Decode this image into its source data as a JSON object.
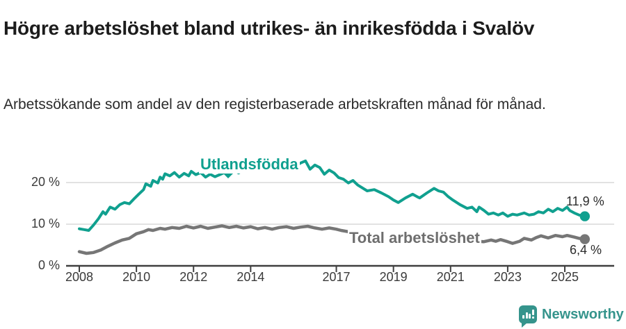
{
  "header": {
    "title": "Högre arbetslöshet bland utrikes- än inrikesfödda i Svalöv",
    "subtitle": "Arbetssökande som andel av den registerbaserade arbetskraften månad för månad."
  },
  "footer": {
    "brand": "Newsworthy",
    "logo_icon": "newsworthy-speech-bubble-barchart-icon"
  },
  "colors": {
    "foreign_series": "#10a08f",
    "total_series": "#767676",
    "grid": "#d8d8d8",
    "axis": "#3f3f3f",
    "text": "#2b2b2b",
    "brand": "#35948c"
  },
  "chart_data": {
    "type": "line",
    "title": "Högre arbetslöshet bland utrikes- än inrikesfödda i Svalöv",
    "subtitle": "Arbetssökande som andel av den registerbaserade arbetskraften månad för månad.",
    "unit": "%",
    "grid": true,
    "legend_position": "inline-labels",
    "x_axis": {
      "ticks": [
        2008,
        2010,
        2012,
        2014,
        2017,
        2019,
        2021,
        2023,
        2025
      ],
      "range": [
        2007.5,
        2026.7
      ]
    },
    "y_axis": {
      "ticks": [
        {
          "value": 0,
          "label": "0 %"
        },
        {
          "value": 10,
          "label": "10 %"
        },
        {
          "value": 20,
          "label": "20 %"
        }
      ],
      "range": [
        0,
        26
      ]
    },
    "series": [
      {
        "name": "Utlandsfödda",
        "color": "#10a08f",
        "line_width": 4,
        "end_label": "11,9 %",
        "end_value": 11.9,
        "points": [
          [
            2008.0,
            8.9
          ],
          [
            2008.17,
            8.7
          ],
          [
            2008.33,
            8.5
          ],
          [
            2008.5,
            9.8
          ],
          [
            2008.67,
            11.3
          ],
          [
            2008.83,
            13.0
          ],
          [
            2008.92,
            12.4
          ],
          [
            2009.08,
            14.1
          ],
          [
            2009.25,
            13.6
          ],
          [
            2009.42,
            14.7
          ],
          [
            2009.58,
            15.2
          ],
          [
            2009.75,
            14.9
          ],
          [
            2009.92,
            16.1
          ],
          [
            2010.08,
            17.2
          ],
          [
            2010.25,
            18.3
          ],
          [
            2010.33,
            19.7
          ],
          [
            2010.5,
            19.1
          ],
          [
            2010.58,
            20.5
          ],
          [
            2010.75,
            19.9
          ],
          [
            2010.83,
            21.3
          ],
          [
            2010.92,
            20.8
          ],
          [
            2011.0,
            22.1
          ],
          [
            2011.17,
            21.6
          ],
          [
            2011.33,
            22.4
          ],
          [
            2011.5,
            21.3
          ],
          [
            2011.67,
            22.2
          ],
          [
            2011.83,
            21.6
          ],
          [
            2011.92,
            22.7
          ],
          [
            2012.08,
            21.9
          ],
          [
            2012.25,
            22.4
          ],
          [
            2012.42,
            21.3
          ],
          [
            2012.58,
            22.0
          ],
          [
            2012.75,
            21.4
          ],
          [
            2012.92,
            21.9
          ],
          [
            2013.08,
            22.4
          ],
          [
            2013.25,
            21.8
          ],
          [
            2013.42,
            22.9
          ],
          [
            2013.58,
            22.3
          ],
          [
            2013.75,
            23.1
          ],
          [
            2013.92,
            22.6
          ],
          [
            2014.08,
            23.3
          ],
          [
            2014.25,
            22.8
          ],
          [
            2014.42,
            23.6
          ],
          [
            2014.58,
            23.1
          ],
          [
            2014.75,
            23.8
          ],
          [
            2014.92,
            23.4
          ],
          [
            2015.08,
            24.2
          ],
          [
            2015.25,
            23.7
          ],
          [
            2015.42,
            24.4
          ],
          [
            2015.58,
            24.0
          ],
          [
            2015.75,
            24.7
          ],
          [
            2015.92,
            25.2
          ],
          [
            2016.08,
            23.2
          ],
          [
            2016.25,
            24.2
          ],
          [
            2016.42,
            23.6
          ],
          [
            2016.58,
            22.0
          ],
          [
            2016.75,
            23.0
          ],
          [
            2016.92,
            22.3
          ],
          [
            2017.08,
            21.2
          ],
          [
            2017.25,
            20.8
          ],
          [
            2017.42,
            19.9
          ],
          [
            2017.58,
            20.5
          ],
          [
            2017.75,
            19.4
          ],
          [
            2018.08,
            18.0
          ],
          [
            2018.33,
            18.3
          ],
          [
            2018.58,
            17.5
          ],
          [
            2018.83,
            16.6
          ],
          [
            2019.0,
            15.8
          ],
          [
            2019.17,
            15.2
          ],
          [
            2019.42,
            16.3
          ],
          [
            2019.67,
            17.2
          ],
          [
            2019.83,
            16.6
          ],
          [
            2019.92,
            16.3
          ],
          [
            2020.17,
            17.5
          ],
          [
            2020.42,
            18.6
          ],
          [
            2020.58,
            18.0
          ],
          [
            2020.75,
            17.7
          ],
          [
            2020.92,
            16.6
          ],
          [
            2021.08,
            15.8
          ],
          [
            2021.33,
            14.7
          ],
          [
            2021.58,
            13.8
          ],
          [
            2021.75,
            14.1
          ],
          [
            2021.92,
            13.0
          ],
          [
            2022.0,
            14.1
          ],
          [
            2022.17,
            13.3
          ],
          [
            2022.33,
            12.4
          ],
          [
            2022.5,
            12.7
          ],
          [
            2022.67,
            12.2
          ],
          [
            2022.83,
            12.7
          ],
          [
            2023.0,
            11.9
          ],
          [
            2023.17,
            12.4
          ],
          [
            2023.33,
            12.2
          ],
          [
            2023.58,
            12.7
          ],
          [
            2023.75,
            12.2
          ],
          [
            2023.92,
            12.4
          ],
          [
            2024.08,
            13.0
          ],
          [
            2024.25,
            12.7
          ],
          [
            2024.42,
            13.6
          ],
          [
            2024.58,
            13.0
          ],
          [
            2024.75,
            13.8
          ],
          [
            2024.92,
            13.3
          ],
          [
            2025.08,
            14.1
          ],
          [
            2025.17,
            13.3
          ],
          [
            2025.33,
            12.7
          ],
          [
            2025.5,
            12.2
          ],
          [
            2025.7,
            11.9
          ]
        ]
      },
      {
        "name": "Total arbetslöshet",
        "color": "#767676",
        "line_width": 4.5,
        "end_label": "6,4 %",
        "end_value": 6.4,
        "points": [
          [
            2008.0,
            3.4
          ],
          [
            2008.25,
            3.0
          ],
          [
            2008.5,
            3.2
          ],
          [
            2008.75,
            3.8
          ],
          [
            2009.0,
            4.7
          ],
          [
            2009.25,
            5.5
          ],
          [
            2009.5,
            6.2
          ],
          [
            2009.75,
            6.6
          ],
          [
            2010.0,
            7.7
          ],
          [
            2010.25,
            8.2
          ],
          [
            2010.42,
            8.7
          ],
          [
            2010.58,
            8.5
          ],
          [
            2010.83,
            9.0
          ],
          [
            2011.0,
            8.8
          ],
          [
            2011.25,
            9.2
          ],
          [
            2011.5,
            9.0
          ],
          [
            2011.75,
            9.5
          ],
          [
            2012.0,
            9.1
          ],
          [
            2012.25,
            9.5
          ],
          [
            2012.5,
            9.0
          ],
          [
            2012.75,
            9.3
          ],
          [
            2013.0,
            9.6
          ],
          [
            2013.25,
            9.2
          ],
          [
            2013.5,
            9.5
          ],
          [
            2013.75,
            9.1
          ],
          [
            2014.0,
            9.4
          ],
          [
            2014.25,
            8.9
          ],
          [
            2014.5,
            9.2
          ],
          [
            2014.75,
            8.8
          ],
          [
            2015.0,
            9.2
          ],
          [
            2015.25,
            9.4
          ],
          [
            2015.5,
            9.0
          ],
          [
            2015.75,
            9.3
          ],
          [
            2016.0,
            9.5
          ],
          [
            2016.25,
            9.1
          ],
          [
            2016.5,
            8.8
          ],
          [
            2016.75,
            9.1
          ],
          [
            2017.0,
            8.8
          ],
          [
            2017.17,
            8.5
          ],
          [
            2017.42,
            8.2
          ],
          [
            2017.75,
            7.9
          ],
          [
            2018.0,
            7.6
          ],
          [
            2018.33,
            7.4
          ],
          [
            2018.67,
            7.2
          ],
          [
            2019.0,
            6.9
          ],
          [
            2019.42,
            6.7
          ],
          [
            2019.83,
            6.9
          ],
          [
            2020.08,
            7.2
          ],
          [
            2020.42,
            7.6
          ],
          [
            2020.75,
            7.4
          ],
          [
            2021.0,
            7.0
          ],
          [
            2021.33,
            6.6
          ],
          [
            2021.58,
            6.2
          ],
          [
            2021.92,
            5.9
          ],
          [
            2022.17,
            5.8
          ],
          [
            2022.42,
            6.2
          ],
          [
            2022.58,
            5.9
          ],
          [
            2022.75,
            6.3
          ],
          [
            2023.0,
            5.8
          ],
          [
            2023.17,
            5.4
          ],
          [
            2023.42,
            5.9
          ],
          [
            2023.58,
            6.6
          ],
          [
            2023.83,
            6.2
          ],
          [
            2024.0,
            6.8
          ],
          [
            2024.17,
            7.2
          ],
          [
            2024.42,
            6.7
          ],
          [
            2024.67,
            7.3
          ],
          [
            2024.92,
            7.0
          ],
          [
            2025.08,
            7.3
          ],
          [
            2025.33,
            6.9
          ],
          [
            2025.5,
            6.6
          ],
          [
            2025.7,
            6.4
          ]
        ]
      }
    ]
  }
}
